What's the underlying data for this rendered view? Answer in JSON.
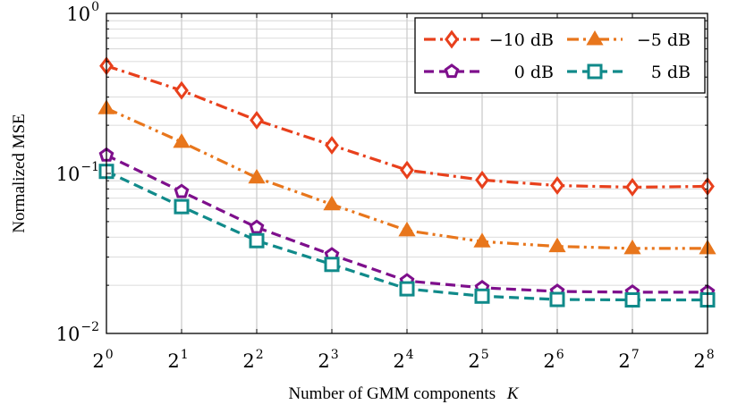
{
  "chart_data": {
    "type": "line",
    "title": "",
    "xlabel": "Number of GMM components",
    "xlabel_var": "K",
    "ylabel": "Normalized MSE",
    "y_scale": "log",
    "ylim": [
      0.01,
      1
    ],
    "x": [
      1,
      2,
      4,
      8,
      16,
      32,
      64,
      128,
      256
    ],
    "x_tick_labels": [
      {
        "base": "2",
        "exp": "0"
      },
      {
        "base": "2",
        "exp": "1"
      },
      {
        "base": "2",
        "exp": "2"
      },
      {
        "base": "2",
        "exp": "3"
      },
      {
        "base": "2",
        "exp": "4"
      },
      {
        "base": "2",
        "exp": "5"
      },
      {
        "base": "2",
        "exp": "6"
      },
      {
        "base": "2",
        "exp": "7"
      },
      {
        "base": "2",
        "exp": "8"
      }
    ],
    "y_tick_labels": [
      {
        "value": 1,
        "base": "10",
        "exp": "0"
      },
      {
        "value": 0.1,
        "base": "10",
        "exp": "−1"
      },
      {
        "value": 0.01,
        "base": "10",
        "exp": "−2"
      }
    ],
    "grid": true,
    "legend_position": "top-right",
    "series": [
      {
        "name": "−10 dB",
        "color": "#e8401c",
        "marker": "diamond",
        "dash": "dashdot",
        "values": [
          0.47,
          0.33,
          0.215,
          0.15,
          0.105,
          0.091,
          0.084,
          0.082,
          0.083
        ]
      },
      {
        "name": "−5 dB",
        "color": "#e8761c",
        "marker": "triangle",
        "dash": "dashdotdot",
        "values": [
          0.255,
          0.157,
          0.094,
          0.064,
          0.044,
          0.0375,
          0.035,
          0.034,
          0.034
        ]
      },
      {
        "name": "0 dB",
        "color": "#7e0f8c",
        "marker": "pentagon",
        "dash": "dashed",
        "values": [
          0.13,
          0.077,
          0.046,
          0.031,
          0.0213,
          0.0193,
          0.0183,
          0.0181,
          0.0181
        ]
      },
      {
        "name": "5 dB",
        "color": "#108a8a",
        "marker": "square",
        "dash": "dashed",
        "values": [
          0.103,
          0.062,
          0.038,
          0.027,
          0.019,
          0.0171,
          0.0163,
          0.0162,
          0.0162
        ]
      }
    ]
  }
}
